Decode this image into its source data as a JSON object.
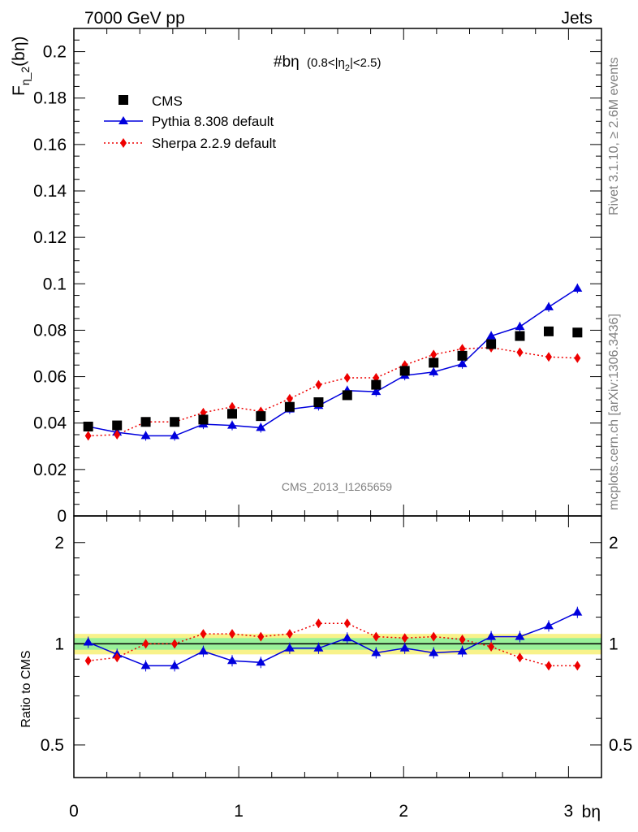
{
  "header": {
    "left": "7000 GeV pp",
    "right": "Jets"
  },
  "side_labels": {
    "rivet": "Rivet 3.1.10, ≥ 2.6M events",
    "mcplots": "mcplots.cern.ch [arXiv:1306.3436]"
  },
  "analysis_id": "CMS_2013_I1265659",
  "plot_title": {
    "main": "#bη",
    "cut_pre": "(0.8<|η",
    "cut_sub": "2",
    "cut_post": "|<2.5)"
  },
  "y_label_main": {
    "base": "F",
    "sub": "η_2",
    "suffix": "(bη)"
  },
  "y_label_ratio": "Ratio to CMS",
  "x_label": "bη",
  "colors": {
    "cms": "#000000",
    "pythia": "#0000dd",
    "sherpa": "#ee0000",
    "band_inner": "#99f099",
    "band_outer": "#f8f28a"
  },
  "chart_data": [
    {
      "type": "scatter",
      "panel": "main",
      "x": [
        0.087,
        0.262,
        0.436,
        0.611,
        0.785,
        0.96,
        1.134,
        1.309,
        1.484,
        1.658,
        1.833,
        2.007,
        2.182,
        2.356,
        2.531,
        2.705,
        2.88,
        3.054
      ],
      "xlim": [
        0,
        3.2
      ],
      "ylim": [
        0,
        0.21
      ],
      "x_ticks": [
        "0",
        "1",
        "2",
        "3"
      ],
      "y_ticks": [
        "0",
        "0.02",
        "0.04",
        "0.06",
        "0.08",
        "0.1",
        "0.12",
        "0.14",
        "0.16",
        "0.18",
        "0.2"
      ],
      "legend_position": "top-left",
      "series": [
        {
          "name": "CMS",
          "marker": "square",
          "values": [
            0.0385,
            0.039,
            0.0405,
            0.0405,
            0.0415,
            0.044,
            0.043,
            0.047,
            0.049,
            0.052,
            0.0565,
            0.0625,
            0.066,
            0.069,
            0.074,
            0.0775,
            0.0795,
            0.079
          ]
        },
        {
          "name": "Pythia 8.308 default",
          "marker": "triangle",
          "values": [
            0.0385,
            0.036,
            0.0345,
            0.0345,
            0.0395,
            0.039,
            0.038,
            0.046,
            0.0475,
            0.054,
            0.0535,
            0.0605,
            0.062,
            0.0655,
            0.0775,
            0.0815,
            0.09,
            0.098
          ]
        },
        {
          "name": "Sherpa 2.2.9 default",
          "marker": "diamond",
          "values": [
            0.0345,
            0.035,
            0.0405,
            0.0405,
            0.0445,
            0.047,
            0.045,
            0.0505,
            0.0565,
            0.0595,
            0.0595,
            0.065,
            0.0695,
            0.072,
            0.0725,
            0.0705,
            0.0685,
            0.068
          ]
        }
      ]
    },
    {
      "type": "line",
      "panel": "ratio",
      "x": [
        0.087,
        0.262,
        0.436,
        0.611,
        0.785,
        0.96,
        1.134,
        1.309,
        1.484,
        1.658,
        1.833,
        2.007,
        2.182,
        2.356,
        2.531,
        2.705,
        2.88,
        3.054
      ],
      "xlim": [
        0,
        3.2
      ],
      "ylim": [
        0.4,
        2.4
      ],
      "y_scale": "log",
      "y_ticks": [
        "0.5",
        "1",
        "2"
      ],
      "series": [
        {
          "name": "Pythia 8.308 default",
          "values": [
            1.01,
            0.93,
            0.86,
            0.86,
            0.95,
            0.89,
            0.88,
            0.97,
            0.97,
            1.04,
            0.94,
            0.97,
            0.94,
            0.95,
            1.05,
            1.05,
            1.13,
            1.24
          ]
        },
        {
          "name": "Sherpa 2.2.9 default",
          "values": [
            0.89,
            0.91,
            1.0,
            1.0,
            1.07,
            1.07,
            1.05,
            1.07,
            1.15,
            1.15,
            1.05,
            1.04,
            1.05,
            1.03,
            0.98,
            0.91,
            0.86,
            0.86
          ]
        }
      ],
      "band_inner": 0.04,
      "band_outer": 0.07
    }
  ]
}
